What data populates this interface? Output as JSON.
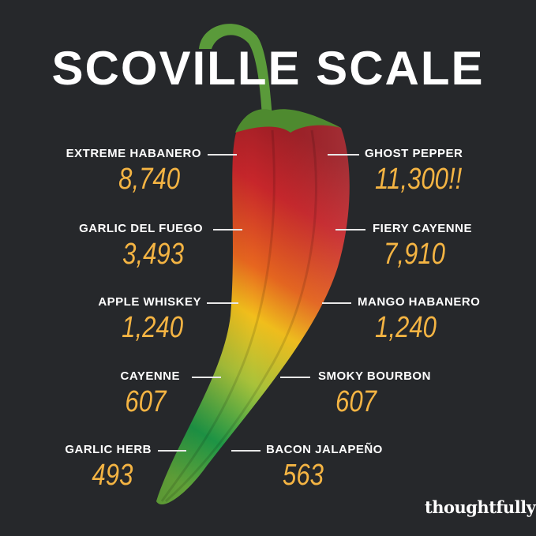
{
  "title": "SCOVILLE SCALE",
  "left": [
    {
      "label": "EXTREME HABANERO",
      "value": "8,740"
    },
    {
      "label": "GARLIC DEL FUEGO",
      "value": "3,493"
    },
    {
      "label": "APPLE WHISKEY",
      "value": "1,240"
    },
    {
      "label": "CAYENNE",
      "value": "607"
    },
    {
      "label": "GARLIC HERB",
      "value": "493"
    }
  ],
  "right": [
    {
      "label": "GHOST PEPPER",
      "value": "11,300!!"
    },
    {
      "label": "FIERY CAYENNE",
      "value": "7,910"
    },
    {
      "label": "MANGO HABANERO",
      "value": "1,240"
    },
    {
      "label": "SMOKY BOURBON",
      "value": "607"
    },
    {
      "label": "BACON JALAPEÑO",
      "value": "563"
    }
  ],
  "logo": "thoughtfully",
  "colors": {
    "background": "#26282b",
    "value": "#f4b443",
    "label": "#ffffff"
  }
}
